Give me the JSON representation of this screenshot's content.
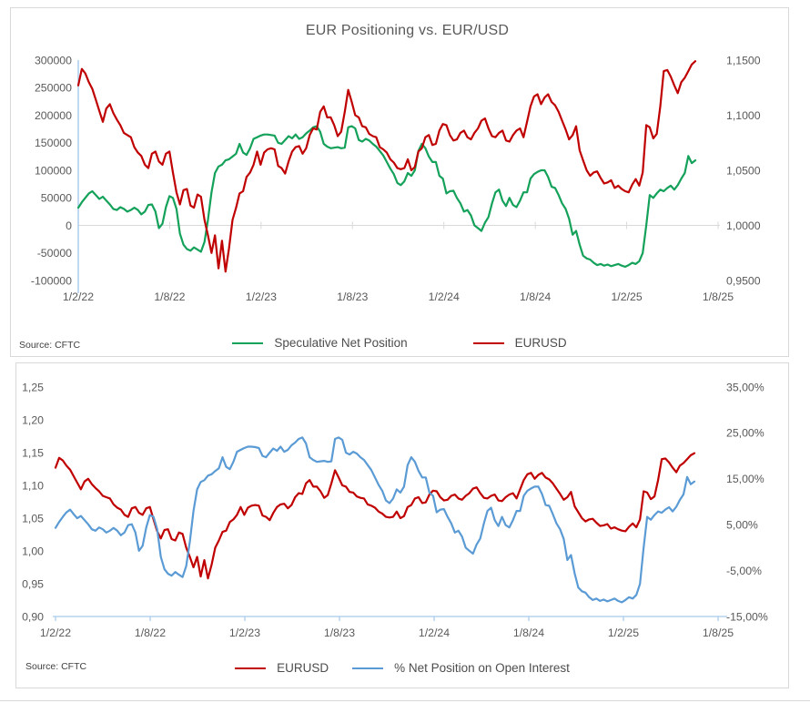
{
  "colors": {
    "net_position_green": "#14A15A",
    "eurusd_red": "#C00000",
    "pct_oi_blue": "#5B9BD5",
    "axis_light_blue": "#A6C9EC",
    "gridline_grey": "#D9D9D9",
    "tick_text_grey": "#595959"
  },
  "chart_data": [
    {
      "type": "line",
      "title": "EUR Positioning vs. EUR/USD",
      "source": "Source: CFTC",
      "x_unit": "weekly",
      "x_tick_labels": [
        "1/2/22",
        "1/8/22",
        "1/2/23",
        "1/8/23",
        "1/2/24",
        "1/8/24",
        "1/2/25",
        "1/8/25"
      ],
      "left_axis": {
        "min": -100000,
        "max": 300000,
        "tick_labels": [
          "300000",
          "250000",
          "200000",
          "150000",
          "100000",
          "50000",
          "0",
          "-50000",
          "-100000"
        ]
      },
      "right_axis": {
        "min": 0.95,
        "max": 1.15,
        "tick_labels": [
          "1,1500",
          "1,1000",
          "1,0500",
          "1,0000",
          "0,9500"
        ]
      },
      "grid": "zero-line-only",
      "legend_position": "bottom",
      "series": [
        {
          "name": "Speculative Net Position",
          "axis": "left",
          "color": "#14A15A",
          "values": [
            32000,
            42000,
            50000,
            58000,
            62000,
            55000,
            48000,
            52000,
            45000,
            38000,
            30000,
            28000,
            33000,
            30000,
            25000,
            28000,
            32000,
            28000,
            20000,
            25000,
            37000,
            38000,
            25000,
            -5000,
            3000,
            33000,
            53000,
            50000,
            30000,
            -15000,
            -35000,
            -43000,
            -46000,
            -40000,
            -44000,
            -48000,
            -30000,
            10000,
            60000,
            95000,
            107000,
            110000,
            118000,
            120000,
            125000,
            130000,
            148000,
            132000,
            128000,
            140000,
            157000,
            160000,
            163000,
            165000,
            165000,
            164000,
            163000,
            150000,
            148000,
            155000,
            162000,
            158000,
            165000,
            157000,
            160000,
            167000,
            172000,
            178000,
            180000,
            170000,
            148000,
            143000,
            140000,
            141000,
            142000,
            140000,
            141000,
            178000,
            180000,
            176000,
            155000,
            152000,
            157000,
            154000,
            148000,
            143000,
            135000,
            127000,
            115000,
            103000,
            93000,
            77000,
            73000,
            80000,
            95000,
            90000,
            100000,
            135000,
            148000,
            140000,
            125000,
            115000,
            115000,
            90000,
            85000,
            58000,
            62000,
            63000,
            50000,
            40000,
            25000,
            28000,
            18000,
            0,
            -5000,
            -10000,
            5000,
            15000,
            40000,
            60000,
            65000,
            45000,
            35000,
            50000,
            37000,
            33000,
            45000,
            60000,
            60000,
            85000,
            93000,
            97000,
            100000,
            100000,
            88000,
            70000,
            68000,
            55000,
            40000,
            30000,
            12000,
            -17000,
            -10000,
            -35000,
            -55000,
            -60000,
            -62000,
            -68000,
            -72000,
            -70000,
            -73000,
            -71000,
            -74000,
            -72000,
            -70000,
            -73000,
            -75000,
            -72000,
            -68000,
            -70000,
            -65000,
            -50000,
            0,
            55000,
            50000,
            58000,
            65000,
            62000,
            68000,
            72000,
            65000,
            73000,
            85000,
            95000,
            126000,
            113000,
            118000
          ]
        },
        {
          "name": "EURUSD",
          "axis": "right",
          "color": "#C00000",
          "values": [
            1.127,
            1.142,
            1.138,
            1.13,
            1.124,
            1.114,
            1.104,
            1.094,
            1.106,
            1.11,
            1.102,
            1.096,
            1.091,
            1.084,
            1.082,
            1.08,
            1.071,
            1.066,
            1.063,
            1.055,
            1.052,
            1.065,
            1.067,
            1.058,
            1.055,
            1.065,
            1.067,
            1.048,
            1.03,
            1.019,
            1.032,
            1.033,
            1.018,
            1.016,
            1.028,
            1.026,
            1.005,
            0.991,
            0.975,
            0.991,
            0.961,
            0.986,
            0.958,
            0.979,
            1.005,
            1.016,
            1.029,
            1.031,
            1.044,
            1.048,
            1.055,
            1.067,
            1.055,
            1.066,
            1.069,
            1.07,
            1.069,
            1.054,
            1.052,
            1.047,
            1.058,
            1.067,
            1.071,
            1.072,
            1.065,
            1.07,
            1.082,
            1.088,
            1.087,
            1.103,
            1.108,
            1.098,
            1.098,
            1.091,
            1.081,
            1.085,
            1.103,
            1.123,
            1.112,
            1.1,
            1.098,
            1.09,
            1.089,
            1.083,
            1.081,
            1.08,
            1.071,
            1.069,
            1.066,
            1.06,
            1.057,
            1.052,
            1.051,
            1.052,
            1.06,
            1.05,
            1.053,
            1.067,
            1.07,
            1.08,
            1.082,
            1.073,
            1.074,
            1.086,
            1.092,
            1.091,
            1.082,
            1.077,
            1.078,
            1.084,
            1.086,
            1.08,
            1.078,
            1.084,
            1.088,
            1.095,
            1.097,
            1.088,
            1.081,
            1.08,
            1.084,
            1.086,
            1.077,
            1.076,
            1.082,
            1.086,
            1.088,
            1.08,
            1.094,
            1.108,
            1.117,
            1.119,
            1.11,
            1.116,
            1.119,
            1.112,
            1.109,
            1.103,
            1.095,
            1.087,
            1.078,
            1.082,
            1.09,
            1.068,
            1.059,
            1.05,
            1.045,
            1.048,
            1.049,
            1.043,
            1.038,
            1.039,
            1.041,
            1.034,
            1.036,
            1.033,
            1.031,
            1.03,
            1.037,
            1.042,
            1.036,
            1.048,
            1.091,
            1.089,
            1.079,
            1.083,
            1.108,
            1.14,
            1.141,
            1.135,
            1.127,
            1.12,
            1.13,
            1.134,
            1.14,
            1.146,
            1.149
          ]
        }
      ]
    },
    {
      "type": "line",
      "title": "",
      "source": "Source: CFTC",
      "x_unit": "weekly",
      "x_tick_labels": [
        "1/2/22",
        "1/8/22",
        "1/2/23",
        "1/8/23",
        "1/2/24",
        "1/8/24",
        "1/2/25",
        "1/8/25"
      ],
      "left_axis": {
        "min": 0.9,
        "max": 1.25,
        "tick_labels": [
          "1,25",
          "1,20",
          "1,15",
          "1,10",
          "1,05",
          "1,00",
          "0,95",
          "0,90"
        ]
      },
      "right_axis": {
        "min": -15,
        "max": 35,
        "tick_labels": [
          "35,00%",
          "25,00%",
          "15,00%",
          "5,00%",
          "-5,00%",
          "-15,00%"
        ]
      },
      "grid": "baseline-only",
      "legend_position": "bottom",
      "series": [
        {
          "name": "EURUSD",
          "axis": "left",
          "color": "#C00000",
          "values": "same_as_chart_0_eurusd"
        },
        {
          "name": "% Net Position on Open Interest",
          "axis": "right",
          "color": "#5B9BD5",
          "values": [
            4.3,
            5.6,
            6.7,
            7.7,
            8.3,
            7.3,
            6.4,
            6.9,
            6.0,
            5.1,
            4.0,
            3.7,
            4.4,
            4.0,
            3.3,
            3.7,
            4.3,
            3.7,
            2.7,
            3.3,
            4.9,
            5.1,
            3.3,
            -0.7,
            0.4,
            4.4,
            7.1,
            6.7,
            4.0,
            -2.0,
            -4.7,
            -5.7,
            -6.1,
            -5.3,
            -5.9,
            -6.4,
            -4.0,
            1.3,
            8.0,
            12.7,
            14.3,
            14.7,
            15.7,
            16.0,
            16.7,
            17.3,
            19.7,
            17.6,
            17.1,
            18.7,
            20.9,
            21.3,
            21.7,
            22.0,
            22.0,
            21.9,
            21.7,
            20.0,
            19.7,
            20.7,
            21.6,
            21.1,
            22.0,
            20.9,
            21.3,
            22.3,
            22.9,
            23.7,
            24.0,
            22.7,
            19.7,
            19.1,
            18.7,
            18.8,
            18.9,
            18.7,
            18.8,
            23.7,
            24.0,
            23.5,
            20.7,
            20.3,
            20.9,
            20.5,
            19.7,
            19.1,
            18.0,
            16.9,
            15.3,
            13.7,
            12.4,
            10.3,
            9.7,
            10.7,
            12.7,
            12.0,
            13.3,
            18.0,
            19.7,
            18.7,
            16.7,
            15.3,
            15.3,
            12.0,
            11.3,
            7.7,
            8.3,
            8.4,
            6.7,
            5.3,
            3.3,
            3.7,
            2.4,
            0.0,
            -0.7,
            -1.3,
            0.7,
            2.0,
            5.3,
            8.0,
            8.7,
            6.0,
            4.7,
            6.7,
            4.9,
            4.4,
            6.0,
            8.0,
            8.0,
            11.3,
            12.4,
            12.9,
            13.3,
            13.3,
            11.7,
            9.3,
            9.1,
            7.3,
            5.3,
            4.0,
            1.9,
            -2.7,
            -1.6,
            -5.6,
            -8.7,
            -9.5,
            -9.8,
            -10.8,
            -11.4,
            -11.1,
            -11.6,
            -11.3,
            -11.7,
            -11.4,
            -11.1,
            -11.6,
            -11.9,
            -11.4,
            -10.8,
            -11.1,
            -10.3,
            -7.9,
            0.0,
            6.7,
            6.1,
            7.1,
            7.9,
            7.6,
            8.3,
            8.8,
            7.9,
            8.9,
            10.4,
            11.6,
            15.4,
            13.8,
            14.4
          ]
        }
      ]
    }
  ]
}
